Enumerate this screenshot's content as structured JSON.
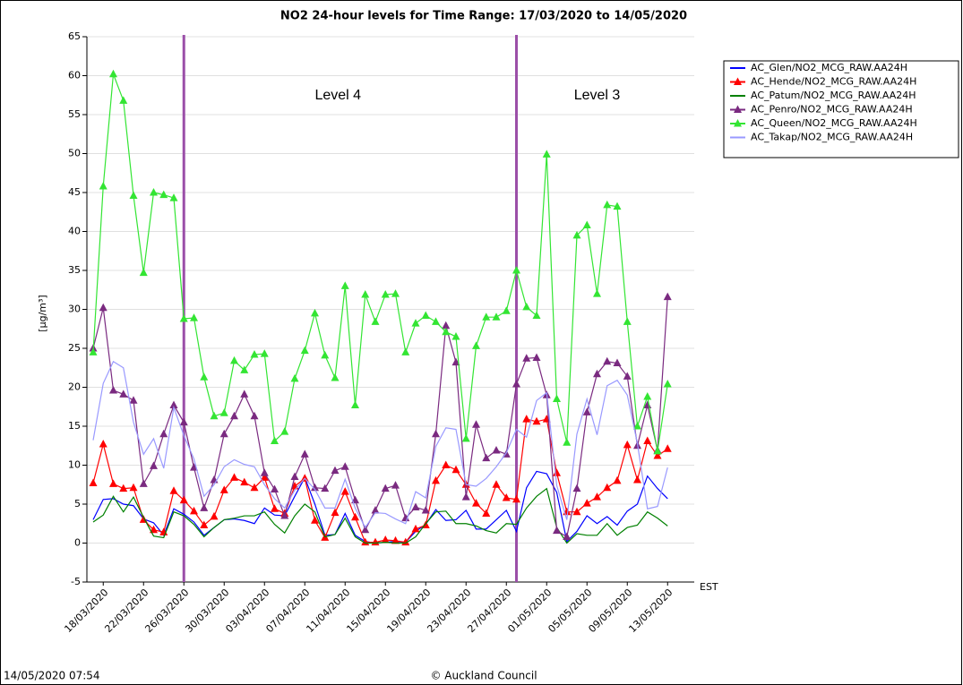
{
  "chart_data": {
    "type": "line",
    "title": "NO2 24-hour levels for Time Range: 17/03/2020 to 14/05/2020",
    "y_label": "[µg/m³]",
    "x_label": "EST",
    "footer_left": "14/05/2020 07:54",
    "footer_center": "© Auckland Council",
    "annotations": [
      "Level 4",
      "Level 3"
    ],
    "annotation_color": "#9b4fa8",
    "categories": [
      null,
      "18/03/2020",
      null,
      null,
      null,
      "22/03/2020",
      null,
      null,
      null,
      "26/03/2020",
      null,
      null,
      null,
      "30/03/2020",
      null,
      null,
      null,
      "03/04/2020",
      null,
      null,
      null,
      "07/04/2020",
      null,
      null,
      null,
      "11/04/2020",
      null,
      null,
      null,
      "15/04/2020",
      null,
      null,
      null,
      "19/04/2020",
      null,
      null,
      null,
      "23/04/2020",
      null,
      null,
      null,
      "27/04/2020",
      null,
      null,
      null,
      "01/05/2020",
      null,
      null,
      null,
      "05/05/2020",
      null,
      null,
      null,
      "09/05/2020",
      null,
      null,
      null,
      "13/05/2020",
      null
    ],
    "ylim": [
      -5,
      65
    ],
    "yticks": [
      -5,
      0,
      5,
      10,
      15,
      20,
      25,
      30,
      35,
      40,
      45,
      50,
      55,
      60,
      65
    ],
    "grid": true,
    "legend": "top-right",
    "series": [
      {
        "name": "AC_Glen/NO2_MCG_RAW.AA24H",
        "color": "#0000ff",
        "marker": "none",
        "values": [
          3,
          5.6,
          5.7,
          5,
          4.8,
          3.1,
          2.6,
          1,
          4.4,
          3.7,
          2.7,
          1,
          2,
          3,
          3.1,
          2.9,
          2.5,
          4.5,
          3.6,
          3.5,
          6,
          8.4,
          5,
          1,
          1.1,
          3.8,
          1,
          0.2,
          0,
          0.1,
          0.2,
          0.1,
          1.5,
          2.4,
          4.3,
          2.9,
          3,
          4.2,
          1.8,
          1.8,
          3,
          4.2,
          1.5,
          7.1,
          9.2,
          8.9,
          6.5,
          0.2,
          1.5,
          3.5,
          2.5,
          3.4,
          2.3,
          4.1,
          5,
          8.6,
          7,
          5.7,
          null
        ]
      },
      {
        "name": "AC_Hende/NO2_MCG_RAW.AA24H",
        "color": "#ff0000",
        "marker": "triangle",
        "values": [
          7.7,
          12.7,
          7.6,
          7,
          7.1,
          3,
          1.7,
          1.4,
          6.7,
          5.5,
          4.1,
          2.3,
          3.4,
          6.8,
          8.4,
          7.8,
          7.1,
          8.4,
          4.4,
          3.8,
          7.3,
          8.3,
          2.9,
          0.7,
          3.9,
          6.6,
          3.3,
          0.1,
          0.1,
          0.4,
          0.3,
          0.1,
          1.8,
          2.3,
          8,
          10,
          9.4,
          7.5,
          5.1,
          3.8,
          7.5,
          5.8,
          5.6,
          15.9,
          15.6,
          15.9,
          9,
          4,
          4,
          5.1,
          5.9,
          7.1,
          8,
          12.6,
          8.1,
          13.1,
          11.2,
          12.1,
          null
        ]
      },
      {
        "name": "AC_Patum/NO2_MCG_RAW.AA24H",
        "color": "#008000",
        "marker": "none",
        "values": [
          2.7,
          3.6,
          6,
          4,
          5.9,
          3.3,
          0.9,
          0.7,
          4,
          3.5,
          2.4,
          0.8,
          2,
          3,
          3.2,
          3.5,
          3.5,
          4,
          2.4,
          1.3,
          3.5,
          5,
          4,
          0.8,
          1.1,
          3.2,
          0.8,
          0,
          0,
          0.1,
          0,
          0,
          0.8,
          2.5,
          4,
          4.1,
          2.5,
          2.5,
          2.2,
          1.6,
          1.3,
          2.5,
          2.4,
          4.5,
          6,
          7,
          2,
          0,
          1.2,
          1,
          1,
          2.5,
          1,
          2,
          2.3,
          4,
          3.2,
          2.2,
          null
        ]
      },
      {
        "name": "AC_Penro/NO2_MCG_RAW.AA24H",
        "color": "#7a2a80",
        "marker": "triangle",
        "values": [
          25,
          30.2,
          19.6,
          19.1,
          18.3,
          7.6,
          9.9,
          14,
          17.7,
          15.5,
          9.7,
          4.5,
          8.1,
          14,
          16.3,
          19.1,
          16.3,
          9,
          6.9,
          3.5,
          8.5,
          11.4,
          7.1,
          7,
          9.3,
          9.8,
          5.5,
          1.7,
          4.2,
          7,
          7.4,
          3.2,
          4.6,
          4.2,
          14,
          27.9,
          23.2,
          5.9,
          15.2,
          10.9,
          11.9,
          11.4,
          20.4,
          23.7,
          23.8,
          19,
          1.6,
          0.8,
          7,
          16.8,
          21.7,
          23.3,
          23.1,
          21.4,
          12.5,
          17.7,
          11.9,
          31.6,
          null
        ]
      },
      {
        "name": "AC_Queen/NO2_MCG_RAW.AA24H",
        "color": "#33e533",
        "marker": "triangle",
        "values": [
          24.5,
          45.8,
          60.2,
          56.8,
          44.6,
          34.7,
          45,
          44.7,
          44.3,
          28.8,
          28.9,
          21.3,
          16.3,
          16.7,
          23.4,
          22.2,
          24.2,
          24.3,
          13.1,
          14.3,
          21.1,
          24.7,
          29.5,
          24.1,
          21.2,
          33,
          17.7,
          31.9,
          28.4,
          31.9,
          32,
          24.5,
          28.2,
          29.2,
          28.4,
          27.1,
          26.5,
          13.4,
          25.3,
          29,
          29,
          29.8,
          35,
          30.3,
          29.2,
          49.9,
          18.5,
          12.9,
          39.5,
          40.8,
          32,
          43.4,
          43.2,
          28.4,
          15,
          18.8,
          11.8,
          20.4,
          null
        ]
      },
      {
        "name": "AC_Takap/NO2_MCG_RAW.AA24H",
        "color": "#9999ff",
        "marker": "none",
        "values": [
          13.2,
          20.5,
          23.3,
          22.5,
          15.5,
          11.4,
          13.4,
          9.6,
          17.4,
          13.8,
          10.8,
          6,
          7.5,
          9.8,
          10.7,
          10.1,
          9.8,
          7.5,
          5.7,
          4.5,
          6.8,
          8.3,
          6.9,
          4.5,
          4.5,
          8.2,
          4.5,
          2,
          3.9,
          3.8,
          3.1,
          2.5,
          6.6,
          5.8,
          12.4,
          14.8,
          14.6,
          7.5,
          7.3,
          8.3,
          9.8,
          11.6,
          14.6,
          13.6,
          18.3,
          19.3,
          7.4,
          3,
          14,
          18.5,
          13.9,
          20.2,
          20.9,
          19,
          12.8,
          4.4,
          4.7,
          9.7,
          null
        ]
      }
    ]
  }
}
